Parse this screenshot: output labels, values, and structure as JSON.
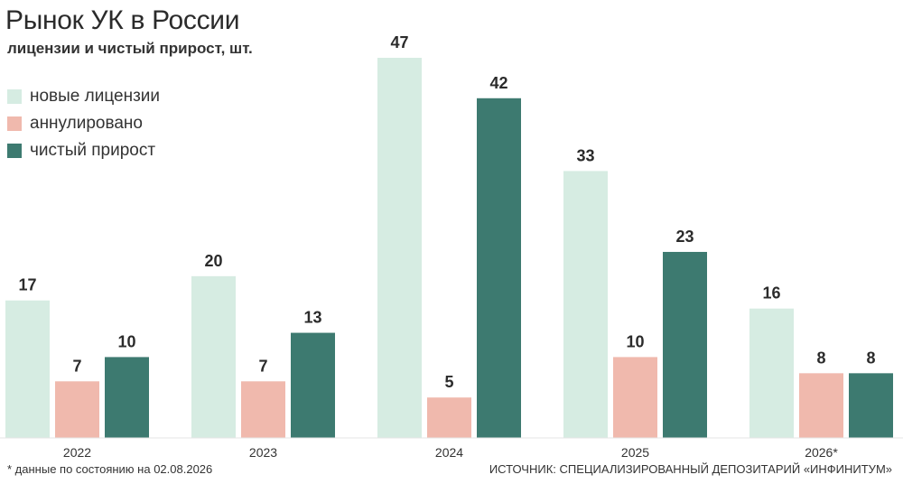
{
  "chart_data": {
    "type": "bar",
    "title": "Рынок УК в России",
    "subtitle": "лицензии и чистый прирост, шт.",
    "categories": [
      "2022",
      "2023",
      "2024",
      "2025",
      "2026*"
    ],
    "series": [
      {
        "name": "новые лицензии",
        "color": "#d6ece2",
        "values": [
          17,
          20,
          47,
          33,
          16
        ]
      },
      {
        "name": "аннулировано",
        "color": "#f0b9ad",
        "values": [
          7,
          7,
          5,
          10,
          8
        ]
      },
      {
        "name": "чистый прирост",
        "color": "#3d7a70",
        "values": [
          10,
          13,
          42,
          23,
          8
        ]
      }
    ],
    "legend_position": "top-left",
    "grid": false,
    "ylim": [
      0,
      47
    ],
    "footnote": "* данные по состоянию на 02.08.2026",
    "source": "ИСТОЧНИК: СПЕЦИАЛИЗИРОВАННЫЙ ДЕПОЗИТАРИЙ «ИНФИНИТУМ»"
  }
}
